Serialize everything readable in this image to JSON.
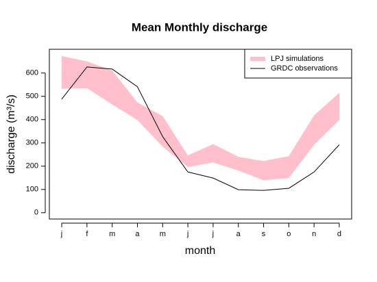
{
  "chart_data": {
    "type": "line",
    "title": "Mean Monthly discharge",
    "xlabel": "month",
    "ylabel": "discharge (m³/s)",
    "categories": [
      "j",
      "f",
      "m",
      "a",
      "m",
      "j",
      "j",
      "a",
      "s",
      "o",
      "n",
      "d"
    ],
    "series": [
      {
        "name": "LPJ simulations",
        "color": "#ffc0cb",
        "upper": [
          673,
          650,
          611,
          474,
          415,
          246,
          295,
          240,
          222,
          243,
          418,
          515
        ],
        "lower": [
          532,
          535,
          465,
          398,
          284,
          196,
          216,
          181,
          140,
          149,
          292,
          398
        ]
      },
      {
        "name": "GRDC observations",
        "color": "#000000",
        "values": [
          488,
          626,
          617,
          541,
          327,
          175,
          149,
          99,
          96,
          105,
          175,
          292
        ]
      }
    ],
    "ylim": [
      -27,
      702
    ],
    "yticks": [
      0,
      100,
      200,
      300,
      400,
      500,
      600
    ],
    "legend": "top-right"
  }
}
